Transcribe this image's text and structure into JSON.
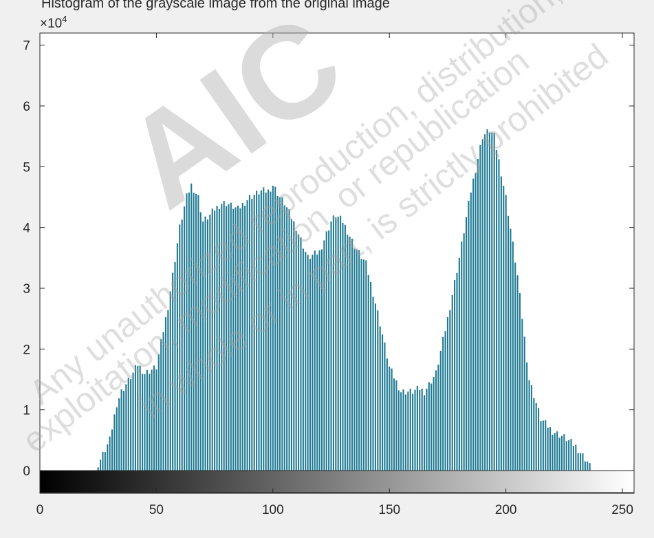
{
  "caption": "Histogram of the grayscale image from the original image",
  "watermark": {
    "logo": "AIC",
    "line1": "Any unauthorized reproduction, distribution,",
    "line2": "exploitation, modification, or republication",
    "line3": "in whole or in part, is strictly prohibited"
  },
  "colors": {
    "bar": "#1f7a93",
    "axis": "#262626",
    "plot_bg": "#ffffff",
    "figure_bg": "#f0f0f0"
  },
  "chart_data": {
    "type": "bar",
    "title": "",
    "xlabel": "",
    "ylabel": "",
    "exponent_label": "×10",
    "exponent_power": "4",
    "xlim": [
      0,
      255
    ],
    "ylim": [
      0,
      72000
    ],
    "colorbar": "grayscale gradient from 0 (black) to 255 (white) along the x-axis",
    "xticks": [
      {
        "value": 0,
        "label": "0"
      },
      {
        "value": 50,
        "label": "50"
      },
      {
        "value": 100,
        "label": "100"
      },
      {
        "value": 150,
        "label": "150"
      },
      {
        "value": 200,
        "label": "200"
      },
      {
        "value": 250,
        "label": "250"
      }
    ],
    "yticks": [
      {
        "value": 0,
        "label": "0"
      },
      {
        "value": 10000,
        "label": "1"
      },
      {
        "value": 20000,
        "label": "2"
      },
      {
        "value": 30000,
        "label": "3"
      },
      {
        "value": 40000,
        "label": "4"
      },
      {
        "value": 50000,
        "label": "5"
      },
      {
        "value": 60000,
        "label": "6"
      },
      {
        "value": 70000,
        "label": "7"
      }
    ],
    "series": [
      {
        "x": [
          25,
          30,
          33,
          35,
          40,
          42,
          45,
          50,
          55,
          60,
          63,
          65,
          68,
          70,
          73,
          75,
          78,
          80,
          85,
          90,
          95,
          98,
          100,
          103,
          105,
          110,
          115,
          120,
          125,
          127,
          130,
          135,
          140,
          145,
          150,
          155,
          160,
          163,
          165,
          170,
          175,
          180,
          185,
          190,
          193,
          195,
          200,
          205,
          210,
          215,
          220,
          225,
          230,
          235,
          237
        ],
        "values": [
          1000,
          5000,
          11000,
          13000,
          16000,
          17500,
          16000,
          17000,
          27000,
          40000,
          45000,
          47000,
          45000,
          41000,
          42000,
          43000,
          44000,
          44000,
          43000,
          45000,
          46000,
          46000,
          47000,
          45000,
          44000,
          40000,
          35000,
          36000,
          41000,
          42000,
          41000,
          37000,
          34000,
          26000,
          17000,
          13000,
          13000,
          13500,
          13000,
          16000,
          25000,
          35000,
          46000,
          55000,
          56000,
          55000,
          45000,
          32000,
          15000,
          8500,
          6500,
          5500,
          4000,
          1500,
          0
        ]
      }
    ]
  }
}
